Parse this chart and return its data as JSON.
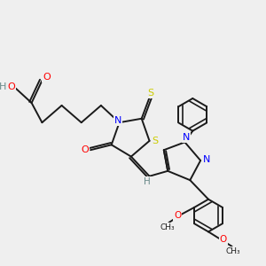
{
  "bg_color": "#efefef",
  "bond_color": "#1a1a1a",
  "N_color": "#0000ff",
  "O_color": "#ff0000",
  "S_color": "#cccc00",
  "H_color": "#6a8a8a",
  "line_width": 1.4,
  "fig_w": 3.0,
  "fig_h": 3.0,
  "dpi": 100,
  "xlim": [
    0,
    10
  ],
  "ylim": [
    0,
    10
  ]
}
